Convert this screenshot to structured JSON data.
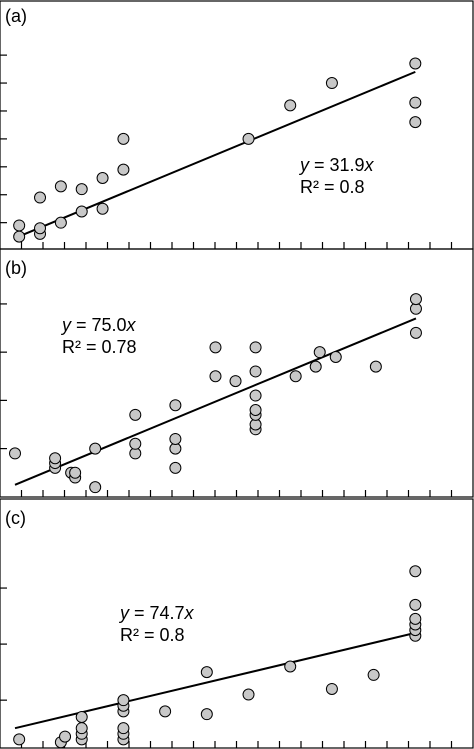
{
  "chart_data": [
    {
      "type": "scatter",
      "panel_label": "(a)",
      "xlim": [
        0,
        10
      ],
      "ylim": [
        0.2,
        7.9
      ],
      "x_tick_count": 21,
      "y_ticks": [
        1,
        2,
        3,
        4,
        5,
        6,
        7
      ],
      "points": [
        {
          "x": 0.1,
          "y": 0.5
        },
        {
          "x": 0.1,
          "y": 0.9
        },
        {
          "x": 0.6,
          "y": 0.6
        },
        {
          "x": 0.6,
          "y": 0.8
        },
        {
          "x": 0.6,
          "y": 1.9
        },
        {
          "x": 1.1,
          "y": 1.0
        },
        {
          "x": 1.1,
          "y": 2.3
        },
        {
          "x": 1.6,
          "y": 1.4
        },
        {
          "x": 1.6,
          "y": 2.2
        },
        {
          "x": 2.1,
          "y": 1.5
        },
        {
          "x": 2.1,
          "y": 2.6
        },
        {
          "x": 2.6,
          "y": 2.9
        },
        {
          "x": 2.6,
          "y": 4.0
        },
        {
          "x": 5.6,
          "y": 4.0
        },
        {
          "x": 6.6,
          "y": 5.2
        },
        {
          "x": 7.6,
          "y": 6.0
        },
        {
          "x": 9.6,
          "y": 4.6
        },
        {
          "x": 9.6,
          "y": 5.3
        },
        {
          "x": 9.6,
          "y": 6.7
        }
      ],
      "fit_line": {
        "x": [
          0.0,
          9.6
        ],
        "y": [
          0.45,
          6.4
        ]
      },
      "equation": {
        "y_var": "y",
        "y_rest": " = 31.9",
        "x_var": "x",
        "r2": "R² = 0.8"
      }
    },
    {
      "type": "scatter",
      "panel_label": "(b)",
      "xlim": [
        -0.4,
        10
      ],
      "ylim": [
        0.1,
        4.6
      ],
      "x_tick_count": 21,
      "y_ticks": [
        1,
        2,
        3,
        4
      ],
      "points": [
        {
          "x": -0.4,
          "y": 0.9
        },
        {
          "x": 0.6,
          "y": 0.6
        },
        {
          "x": 0.6,
          "y": 0.7
        },
        {
          "x": 0.6,
          "y": 0.8
        },
        {
          "x": 1.0,
          "y": 0.5
        },
        {
          "x": 1.1,
          "y": 0.4
        },
        {
          "x": 1.1,
          "y": 0.5
        },
        {
          "x": 1.6,
          "y": 0.2
        },
        {
          "x": 1.6,
          "y": 1.0
        },
        {
          "x": 2.6,
          "y": 0.9
        },
        {
          "x": 2.6,
          "y": 1.1
        },
        {
          "x": 2.6,
          "y": 1.7
        },
        {
          "x": 3.6,
          "y": 0.6
        },
        {
          "x": 3.6,
          "y": 1.0
        },
        {
          "x": 3.6,
          "y": 1.2
        },
        {
          "x": 3.6,
          "y": 1.9
        },
        {
          "x": 4.6,
          "y": 2.5
        },
        {
          "x": 4.6,
          "y": 3.1
        },
        {
          "x": 5.1,
          "y": 2.4
        },
        {
          "x": 5.6,
          "y": 1.4
        },
        {
          "x": 5.6,
          "y": 1.5
        },
        {
          "x": 5.6,
          "y": 1.7
        },
        {
          "x": 5.6,
          "y": 1.8
        },
        {
          "x": 5.6,
          "y": 2.1
        },
        {
          "x": 5.6,
          "y": 2.6
        },
        {
          "x": 5.6,
          "y": 3.1
        },
        {
          "x": 6.6,
          "y": 2.5
        },
        {
          "x": 7.1,
          "y": 2.7
        },
        {
          "x": 7.2,
          "y": 3.0
        },
        {
          "x": 7.6,
          "y": 2.9
        },
        {
          "x": 8.6,
          "y": 2.7
        },
        {
          "x": 9.6,
          "y": 3.4
        },
        {
          "x": 9.6,
          "y": 3.9
        },
        {
          "x": 9.6,
          "y": 4.1
        }
      ],
      "fit_line": {
        "x": [
          -0.4,
          9.6
        ],
        "y": [
          0.25,
          3.7
        ]
      },
      "equation": {
        "y_var": "y",
        "y_rest": " = 75.0",
        "x_var": "x",
        "r2": "R² = 0.78"
      }
    },
    {
      "type": "scatter",
      "panel_label": "(c)",
      "xlim": [
        0,
        10
      ],
      "ylim": [
        0.2,
        4.0
      ],
      "x_tick_count": 21,
      "y_ticks": [
        1,
        2,
        3
      ],
      "points": [
        {
          "x": 0.1,
          "y": 0.3
        },
        {
          "x": 1.1,
          "y": 0.25
        },
        {
          "x": 1.2,
          "y": 0.35
        },
        {
          "x": 1.6,
          "y": 0.3
        },
        {
          "x": 1.6,
          "y": 0.4
        },
        {
          "x": 1.6,
          "y": 0.5
        },
        {
          "x": 1.6,
          "y": 0.7
        },
        {
          "x": 2.6,
          "y": 0.3
        },
        {
          "x": 2.6,
          "y": 0.4
        },
        {
          "x": 2.6,
          "y": 0.5
        },
        {
          "x": 2.6,
          "y": 0.8
        },
        {
          "x": 2.6,
          "y": 0.9
        },
        {
          "x": 2.6,
          "y": 1.0
        },
        {
          "x": 3.6,
          "y": 0.8
        },
        {
          "x": 4.6,
          "y": 0.75
        },
        {
          "x": 4.6,
          "y": 1.5
        },
        {
          "x": 5.6,
          "y": 1.1
        },
        {
          "x": 6.6,
          "y": 1.6
        },
        {
          "x": 7.6,
          "y": 1.2
        },
        {
          "x": 8.6,
          "y": 1.45
        },
        {
          "x": 9.6,
          "y": 2.15
        },
        {
          "x": 9.6,
          "y": 2.25
        },
        {
          "x": 9.6,
          "y": 2.35
        },
        {
          "x": 9.6,
          "y": 2.45
        },
        {
          "x": 9.6,
          "y": 2.7
        },
        {
          "x": 9.6,
          "y": 3.3
        }
      ],
      "fit_line": {
        "x": [
          0.0,
          9.6
        ],
        "y": [
          0.5,
          2.2
        ]
      },
      "equation": {
        "y_var": "y",
        "y_rest": " = 74.7",
        "x_var": "x",
        "r2": "R² = 0.8"
      }
    }
  ]
}
